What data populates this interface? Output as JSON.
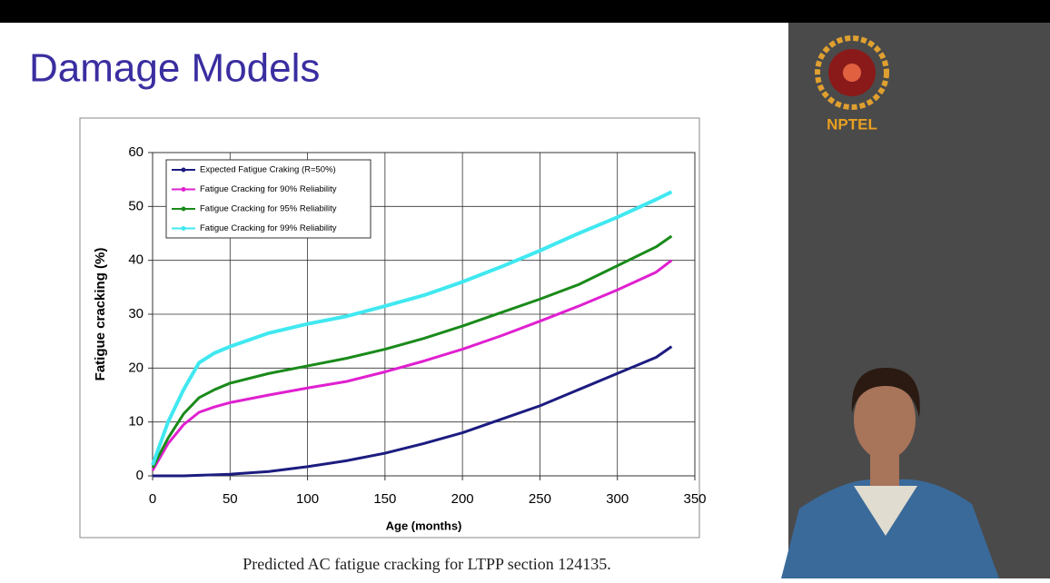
{
  "slide": {
    "title": "Damage Models",
    "caption": "Predicted AC fatigue cracking for LTPP section 124135."
  },
  "logo": "NPTEL",
  "chart_data": {
    "type": "line",
    "x_label": "Age (months)",
    "y_label": "Fatigue cracking (%)",
    "x": [
      0,
      10,
      20,
      30,
      40,
      50,
      75,
      100,
      125,
      150,
      175,
      200,
      225,
      250,
      275,
      300,
      325,
      335
    ],
    "series": [
      {
        "name": "Expected Fatigue Craking (R=50%)",
        "color": "#1c1c80",
        "values": [
          0,
          0,
          0,
          0.1,
          0.2,
          0.3,
          0.8,
          1.7,
          2.8,
          4.2,
          6,
          8,
          10.5,
          13,
          16,
          19,
          22,
          24
        ]
      },
      {
        "name": "Fatigue Cracking for 90% Reliability",
        "color": "#e020d0",
        "values": [
          1,
          6,
          9.5,
          11.8,
          12.8,
          13.6,
          15,
          16.3,
          17.5,
          19.3,
          21.3,
          23.5,
          26,
          28.7,
          31.5,
          34.5,
          37.8,
          40
        ]
      },
      {
        "name": "Fatigue Cracking for 95% Reliability",
        "color": "#1a8a1a",
        "values": [
          1.5,
          7,
          11.5,
          14.5,
          16,
          17.2,
          19,
          20.4,
          21.8,
          23.5,
          25.5,
          27.8,
          30.3,
          32.8,
          35.5,
          39,
          42.5,
          44.5
        ]
      },
      {
        "name": "Fatigue Cracking for 99% Reliability",
        "color": "#40e8f0",
        "values": [
          2,
          10,
          16,
          21,
          22.8,
          24,
          26.5,
          28.2,
          29.6,
          31.5,
          33.5,
          36,
          38.8,
          41.8,
          45,
          48,
          51.3,
          52.7
        ]
      }
    ],
    "xlim": [
      0,
      350
    ],
    "xticks": [
      0,
      50,
      100,
      150,
      200,
      250,
      300,
      350
    ],
    "ylim": [
      0,
      60
    ],
    "yticks": [
      0,
      10,
      20,
      30,
      40,
      50,
      60
    ],
    "grid": true,
    "legend": "top-left"
  }
}
